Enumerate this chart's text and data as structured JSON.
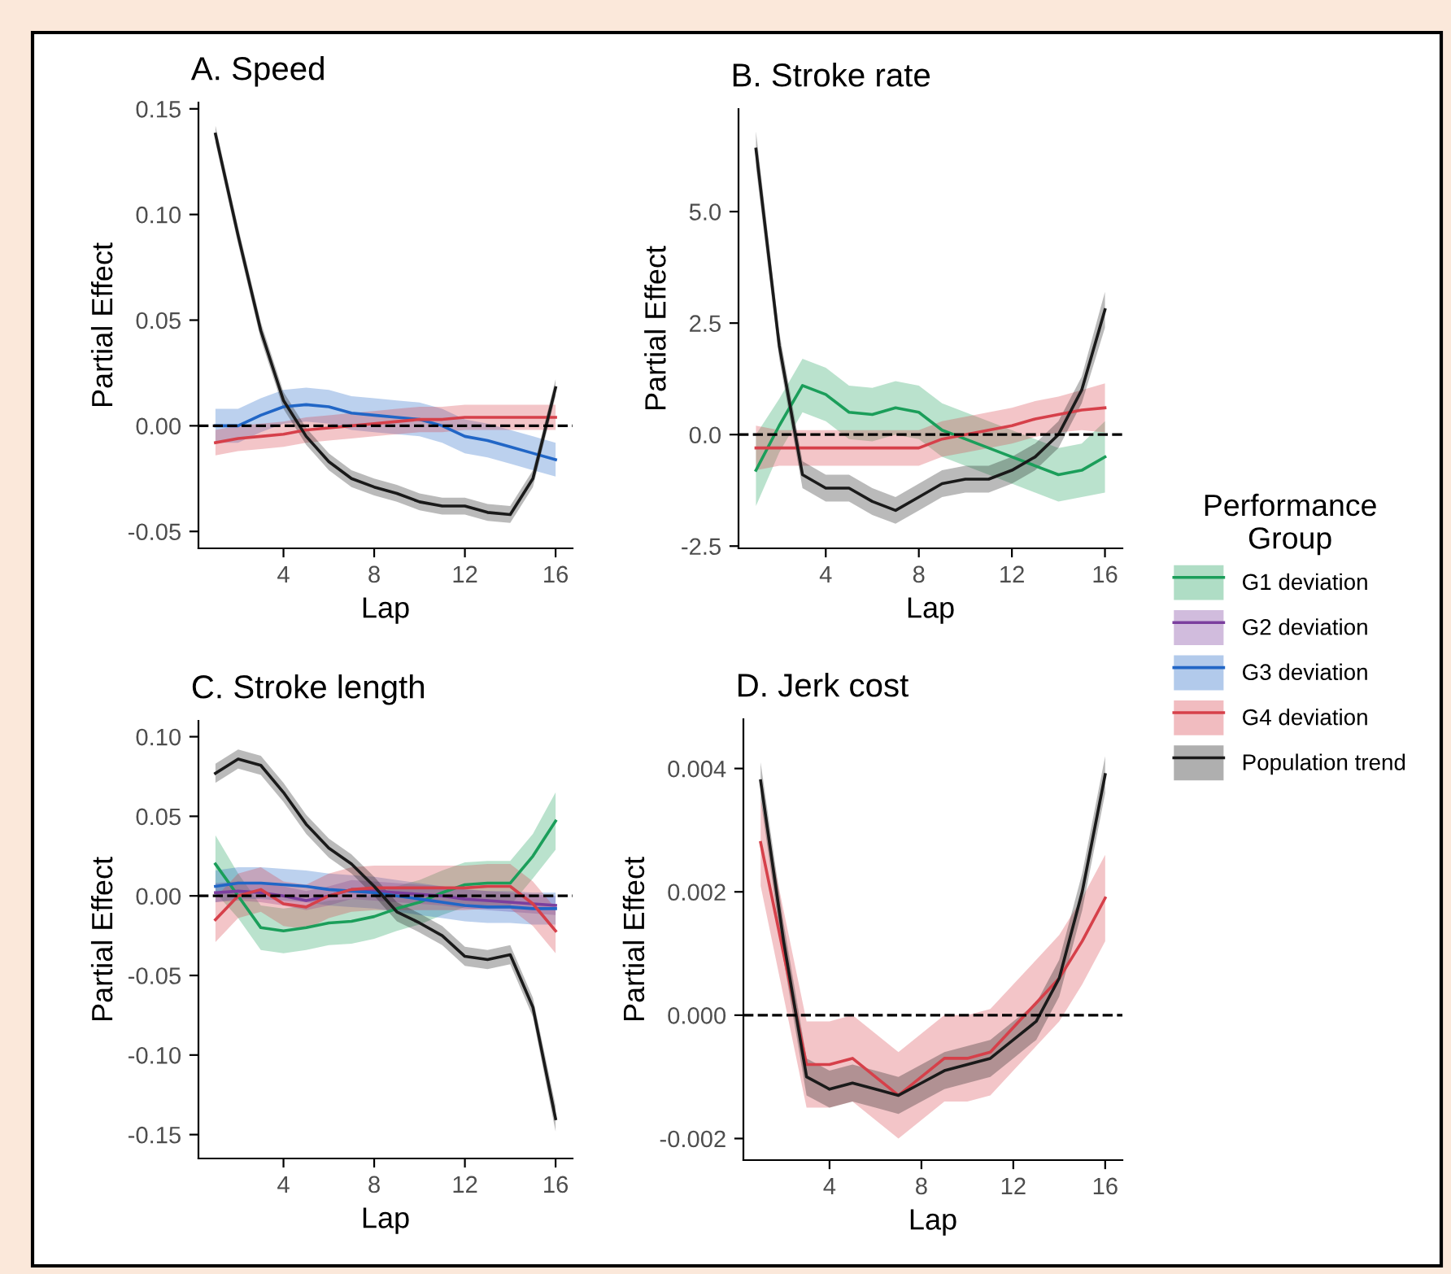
{
  "chart_data": [
    {
      "type": "line",
      "title": "A. Speed",
      "xlabel": "Lap",
      "ylabel": "Partial Effect",
      "xlim": [
        0.25,
        16.75
      ],
      "xticks": [
        4,
        8,
        12,
        16
      ],
      "ylim": [
        -0.058,
        0.153
      ],
      "yticks": [
        {
          "value": -0.05,
          "label": "-0.05"
        },
        {
          "value": 0,
          "label": "0.00"
        },
        {
          "value": 0.05,
          "label": "0.05"
        },
        {
          "value": 0.1,
          "label": "0.10"
        },
        {
          "value": 0.15,
          "label": "0.15"
        }
      ],
      "ref_lines": [
        {
          "axis": "y",
          "value": 0,
          "color": "#000000",
          "line_style": "dashed"
        }
      ],
      "series": [
        {
          "color": "#2166c6",
          "x": [
            1,
            2,
            3,
            4,
            5,
            6,
            7,
            8,
            9,
            10,
            11,
            12,
            13,
            14,
            15,
            16
          ],
          "values": [
            0,
            0,
            0.005,
            0.009,
            0.01,
            0.009,
            0.006,
            0.005,
            0.004,
            0.003,
            0,
            -0.005,
            -0.007,
            -0.01,
            -0.013,
            -0.016
          ],
          "lower": [
            -0.008,
            -0.008,
            -0.003,
            0.001,
            0.002,
            0.001,
            -0.002,
            -0.003,
            -0.004,
            -0.005,
            -0.008,
            -0.013,
            -0.015,
            -0.018,
            -0.021,
            -0.024
          ],
          "upper": [
            0.008,
            0.008,
            0.013,
            0.017,
            0.018,
            0.017,
            0.014,
            0.013,
            0.012,
            0.011,
            0.008,
            0.003,
            0.001,
            -0.002,
            -0.005,
            -0.008
          ]
        },
        {
          "color": "#d6404a",
          "x": [
            1,
            2,
            3,
            4,
            5,
            6,
            7,
            8,
            9,
            10,
            11,
            12,
            13,
            14,
            15,
            16
          ],
          "values": [
            -0.008,
            -0.006,
            -0.005,
            -0.004,
            -0.002,
            -0.001,
            0,
            0.001,
            0.002,
            0.003,
            0.003,
            0.004,
            0.004,
            0.004,
            0.004,
            0.004
          ],
          "lower": [
            -0.014,
            -0.012,
            -0.011,
            -0.01,
            -0.008,
            -0.007,
            -0.006,
            -0.005,
            -0.004,
            -0.003,
            -0.003,
            -0.002,
            -0.002,
            -0.002,
            -0.002,
            -0.002
          ],
          "upper": [
            -0.002,
            0,
            0.001,
            0.002,
            0.004,
            0.005,
            0.006,
            0.007,
            0.008,
            0.009,
            0.009,
            0.01,
            0.01,
            0.01,
            0.01,
            0.01
          ]
        },
        {
          "color": "#1a1a1a",
          "x": [
            1,
            2,
            3,
            4,
            5,
            6,
            7,
            8,
            9,
            10,
            11,
            12,
            13,
            14,
            15,
            16
          ],
          "values": [
            0.138,
            0.09,
            0.045,
            0.012,
            -0.005,
            -0.017,
            -0.025,
            -0.029,
            -0.032,
            -0.036,
            -0.038,
            -0.038,
            -0.041,
            -0.042,
            -0.025,
            0.018
          ],
          "lower": [
            0.134,
            0.086,
            0.041,
            0.008,
            -0.009,
            -0.021,
            -0.029,
            -0.033,
            -0.036,
            -0.04,
            -0.042,
            -0.042,
            -0.045,
            -0.046,
            -0.029,
            0.014
          ],
          "upper": [
            0.142,
            0.094,
            0.049,
            0.016,
            -0.001,
            -0.013,
            -0.021,
            -0.025,
            -0.028,
            -0.032,
            -0.034,
            -0.034,
            -0.037,
            -0.038,
            -0.021,
            0.022
          ]
        }
      ]
    },
    {
      "type": "line",
      "title": "B. Stroke rate",
      "xlabel": "Lap",
      "ylabel": "Partial Effect",
      "xlim": [
        0.25,
        16.75
      ],
      "xticks": [
        4,
        8,
        12,
        16
      ],
      "ylim": [
        -2.55,
        7.3
      ],
      "yticks": [
        {
          "value": -2.5,
          "label": "-2.5"
        },
        {
          "value": 0,
          "label": "0.0"
        },
        2.5,
        {
          "value": 5,
          "label": "5.0"
        }
      ],
      "ref_lines": [
        {
          "axis": "y",
          "value": 0,
          "color": "#000000",
          "line_style": "dashed"
        }
      ],
      "series": [
        {
          "color": "#1b9e5a",
          "x": [
            1,
            2,
            3,
            4,
            5,
            6,
            7,
            8,
            9,
            10,
            11,
            12,
            13,
            14,
            15,
            16
          ],
          "values": [
            -0.8,
            0.2,
            1.1,
            0.9,
            0.5,
            0.45,
            0.6,
            0.5,
            0.1,
            -0.1,
            -0.3,
            -0.5,
            -0.7,
            -0.9,
            -0.8,
            -0.5
          ],
          "lower": [
            -1.6,
            -0.4,
            0.5,
            0.3,
            -0.1,
            -0.15,
            0.0,
            -0.1,
            -0.5,
            -0.7,
            -0.9,
            -1.1,
            -1.3,
            -1.5,
            -1.4,
            -1.3
          ],
          "upper": [
            0.0,
            0.8,
            1.7,
            1.5,
            1.1,
            1.05,
            1.2,
            1.1,
            0.7,
            0.5,
            0.3,
            0.1,
            -0.1,
            -0.3,
            -0.2,
            0.3
          ]
        },
        {
          "color": "#d6404a",
          "x": [
            1,
            2,
            3,
            4,
            5,
            6,
            7,
            8,
            9,
            10,
            11,
            12,
            13,
            14,
            15,
            16
          ],
          "values": [
            -0.3,
            -0.3,
            -0.3,
            -0.3,
            -0.3,
            -0.3,
            -0.3,
            -0.3,
            -0.1,
            0.0,
            0.1,
            0.2,
            0.35,
            0.45,
            0.55,
            0.6
          ],
          "lower": [
            -0.8,
            -0.7,
            -0.7,
            -0.7,
            -0.7,
            -0.7,
            -0.7,
            -0.7,
            -0.5,
            -0.4,
            -0.3,
            -0.2,
            -0.05,
            0.05,
            0.1,
            0.05
          ],
          "upper": [
            0.2,
            0.1,
            0.1,
            0.1,
            0.1,
            0.1,
            0.1,
            0.1,
            0.3,
            0.4,
            0.5,
            0.6,
            0.75,
            0.85,
            1.0,
            1.15
          ]
        },
        {
          "color": "#1a1a1a",
          "x": [
            1,
            2,
            3,
            4,
            5,
            6,
            7,
            8,
            9,
            10,
            11,
            12,
            13,
            14,
            15,
            16
          ],
          "values": [
            6.4,
            2.0,
            -0.9,
            -1.2,
            -1.2,
            -1.5,
            -1.7,
            -1.4,
            -1.1,
            -1.0,
            -1.0,
            -0.8,
            -0.5,
            0.0,
            1.0,
            2.8
          ],
          "lower": [
            6.0,
            1.7,
            -1.2,
            -1.5,
            -1.5,
            -1.8,
            -2.0,
            -1.7,
            -1.4,
            -1.3,
            -1.3,
            -1.1,
            -0.8,
            -0.3,
            0.7,
            2.4
          ],
          "upper": [
            6.8,
            2.3,
            -0.6,
            -0.9,
            -0.9,
            -1.2,
            -1.4,
            -1.1,
            -0.8,
            -0.7,
            -0.7,
            -0.5,
            -0.2,
            0.3,
            1.3,
            3.2
          ]
        }
      ]
    },
    {
      "type": "line",
      "title": "C. Stroke length",
      "xlabel": "Lap",
      "ylabel": "Partial Effect",
      "xlim": [
        0.25,
        16.75
      ],
      "xticks": [
        4,
        8,
        12,
        16
      ],
      "ylim": [
        -0.165,
        0.11
      ],
      "yticks": [
        {
          "value": -0.15,
          "label": "-0.15"
        },
        {
          "value": -0.1,
          "label": "-0.10"
        },
        {
          "value": -0.05,
          "label": "-0.05"
        },
        {
          "value": 0,
          "label": "0.00"
        },
        {
          "value": 0.05,
          "label": "0.05"
        },
        {
          "value": 0.1,
          "label": "0.10"
        }
      ],
      "ref_lines": [
        {
          "axis": "y",
          "value": 0,
          "color": "#000000",
          "line_style": "dashed"
        }
      ],
      "legend": "right",
      "legend_title": "Performance Group",
      "series": [
        {
          "name": "G1 deviation",
          "color": "#1b9e5a",
          "x": [
            1,
            2,
            3,
            4,
            5,
            6,
            7,
            8,
            9,
            10,
            11,
            12,
            13,
            14,
            15,
            16
          ],
          "values": [
            0.02,
            0,
            -0.02,
            -0.022,
            -0.02,
            -0.017,
            -0.016,
            -0.013,
            -0.008,
            -0.004,
            0.002,
            0.007,
            0.008,
            0.008,
            0.025,
            0.047
          ],
          "lower": [
            0.002,
            -0.014,
            -0.034,
            -0.036,
            -0.034,
            -0.031,
            -0.03,
            -0.027,
            -0.022,
            -0.018,
            -0.012,
            -0.007,
            -0.006,
            -0.006,
            0.011,
            0.029
          ],
          "upper": [
            0.038,
            0.014,
            -0.006,
            -0.008,
            -0.006,
            -0.003,
            -0.002,
            0.001,
            0.006,
            0.01,
            0.016,
            0.021,
            0.022,
            0.022,
            0.039,
            0.065
          ]
        },
        {
          "name": "G2 deviation",
          "color": "#7b3f9e",
          "x": [
            1,
            2,
            3,
            4,
            5,
            6,
            7,
            8,
            9,
            10,
            11,
            12,
            13,
            14,
            15,
            16
          ],
          "values": [
            0.002,
            0.003,
            0.002,
            0,
            -0.003,
            0,
            0.004,
            0.003,
            0.002,
            0.001,
            0,
            -0.002,
            -0.003,
            -0.004,
            -0.005,
            -0.006
          ],
          "lower": [
            -0.004,
            -0.003,
            -0.004,
            -0.006,
            -0.009,
            -0.006,
            -0.002,
            -0.003,
            -0.004,
            -0.005,
            -0.006,
            -0.008,
            -0.009,
            -0.01,
            -0.011,
            -0.012
          ],
          "upper": [
            0.008,
            0.009,
            0.008,
            0.006,
            0.003,
            0.006,
            0.01,
            0.009,
            0.008,
            0.007,
            0.006,
            0.004,
            0.003,
            0.002,
            0.001,
            0
          ]
        },
        {
          "name": "G3 deviation",
          "color": "#2166c6",
          "x": [
            1,
            2,
            3,
            4,
            5,
            6,
            7,
            8,
            9,
            10,
            11,
            12,
            13,
            14,
            15,
            16
          ],
          "values": [
            0.006,
            0.008,
            0.008,
            0.007,
            0.006,
            0.004,
            0.003,
            0.002,
            0,
            -0.002,
            -0.004,
            -0.006,
            -0.007,
            -0.007,
            -0.008,
            -0.008
          ],
          "lower": [
            -0.004,
            -0.002,
            -0.002,
            -0.003,
            -0.004,
            -0.006,
            -0.007,
            -0.008,
            -0.01,
            -0.012,
            -0.014,
            -0.016,
            -0.017,
            -0.017,
            -0.018,
            -0.018
          ],
          "upper": [
            0.016,
            0.018,
            0.018,
            0.017,
            0.016,
            0.014,
            0.013,
            0.012,
            0.01,
            0.008,
            0.006,
            0.004,
            0.003,
            0.003,
            0.002,
            0.002
          ]
        },
        {
          "name": "G4 deviation",
          "color": "#d6404a",
          "x": [
            1,
            2,
            3,
            4,
            5,
            6,
            7,
            8,
            9,
            10,
            11,
            12,
            13,
            14,
            15,
            16
          ],
          "values": [
            -0.015,
            0,
            0.004,
            -0.005,
            -0.007,
            0,
            0.004,
            0.005,
            0.005,
            0.005,
            0.005,
            0.005,
            0.006,
            0.006,
            -0.005,
            -0.022
          ],
          "lower": [
            -0.029,
            -0.014,
            -0.01,
            -0.019,
            -0.021,
            -0.014,
            -0.01,
            -0.009,
            -0.009,
            -0.009,
            -0.009,
            -0.009,
            -0.008,
            -0.008,
            -0.019,
            -0.036
          ],
          "upper": [
            -0.001,
            0.014,
            0.018,
            0.009,
            0.007,
            0.014,
            0.018,
            0.019,
            0.019,
            0.019,
            0.019,
            0.019,
            0.02,
            0.02,
            0.009,
            -0.008
          ]
        },
        {
          "name": "Population trend",
          "color": "#1a1a1a",
          "x": [
            1,
            2,
            3,
            4,
            5,
            6,
            7,
            8,
            9,
            10,
            11,
            12,
            13,
            14,
            15,
            16
          ],
          "values": [
            0.077,
            0.086,
            0.082,
            0.065,
            0.045,
            0.03,
            0.02,
            0.006,
            -0.01,
            -0.017,
            -0.025,
            -0.038,
            -0.04,
            -0.037,
            -0.07,
            -0.14
          ],
          "lower": [
            0.071,
            0.08,
            0.076,
            0.059,
            0.039,
            0.024,
            0.014,
            0,
            -0.016,
            -0.023,
            -0.031,
            -0.044,
            -0.046,
            -0.043,
            -0.076,
            -0.148
          ],
          "upper": [
            0.083,
            0.092,
            0.088,
            0.071,
            0.051,
            0.036,
            0.026,
            0.012,
            -0.004,
            -0.011,
            -0.019,
            -0.032,
            -0.034,
            -0.031,
            -0.064,
            -0.132
          ]
        }
      ]
    },
    {
      "type": "line",
      "title": "D. Jerk cost",
      "xlabel": "Lap",
      "ylabel": "Partial Effect",
      "xlim": [
        0.25,
        16.75
      ],
      "xticks": [
        4,
        8,
        12,
        16
      ],
      "ylim": [
        -0.00235,
        0.0048
      ],
      "yticks": [
        {
          "value": -0.002,
          "label": "-0.002"
        },
        {
          "value": 0,
          "label": "0.000"
        },
        0.002,
        0.004
      ],
      "ref_lines": [
        {
          "axis": "y",
          "value": 0,
          "color": "#000000",
          "line_style": "dashed"
        }
      ],
      "series": [
        {
          "color": "#d6404a",
          "x": [
            1,
            2,
            3,
            4,
            5,
            6,
            7,
            8,
            9,
            10,
            11,
            12,
            13,
            14,
            15,
            16
          ],
          "values": [
            0.0028,
            0.001,
            -0.0008,
            -0.0008,
            -0.0007,
            -0.001,
            -0.0013,
            -0.001,
            -0.0007,
            -0.0007,
            -0.0006,
            -0.0002,
            0.0002,
            0.0006,
            0.0012,
            0.0019
          ],
          "lower": [
            0.0021,
            0.0003,
            -0.0015,
            -0.0015,
            -0.0014,
            -0.0017,
            -0.002,
            -0.0017,
            -0.0014,
            -0.0014,
            -0.0013,
            -0.0009,
            -0.0005,
            -0.0001,
            0.0005,
            0.0012
          ],
          "upper": [
            0.0035,
            0.0017,
            -0.0001,
            -0.0001,
            0,
            -0.0003,
            -0.0006,
            -0.0003,
            0,
            0,
            0.0001,
            0.0005,
            0.0009,
            0.0013,
            0.0019,
            0.0026
          ]
        },
        {
          "color": "#1a1a1a",
          "x": [
            1,
            2,
            3,
            4,
            5,
            6,
            7,
            8,
            9,
            10,
            11,
            12,
            13,
            14,
            15,
            16
          ],
          "values": [
            0.0038,
            0.0012,
            -0.001,
            -0.0012,
            -0.0011,
            -0.0012,
            -0.0013,
            -0.0011,
            -0.0009,
            -0.0008,
            -0.0007,
            -0.0004,
            -0.0001,
            0.0006,
            0.002,
            0.0039
          ],
          "lower": [
            0.0035,
            0.0009,
            -0.0013,
            -0.0015,
            -0.0014,
            -0.0015,
            -0.0016,
            -0.0014,
            -0.0012,
            -0.0011,
            -0.001,
            -0.0007,
            -0.0004,
            0.0003,
            0.0017,
            0.0036
          ],
          "upper": [
            0.0041,
            0.0015,
            -0.0007,
            -0.0009,
            -0.0008,
            -0.0009,
            -0.001,
            -0.0008,
            -0.0006,
            -0.0005,
            -0.0004,
            -0.0001,
            0.0002,
            0.0009,
            0.0023,
            0.0042
          ]
        }
      ]
    }
  ]
}
